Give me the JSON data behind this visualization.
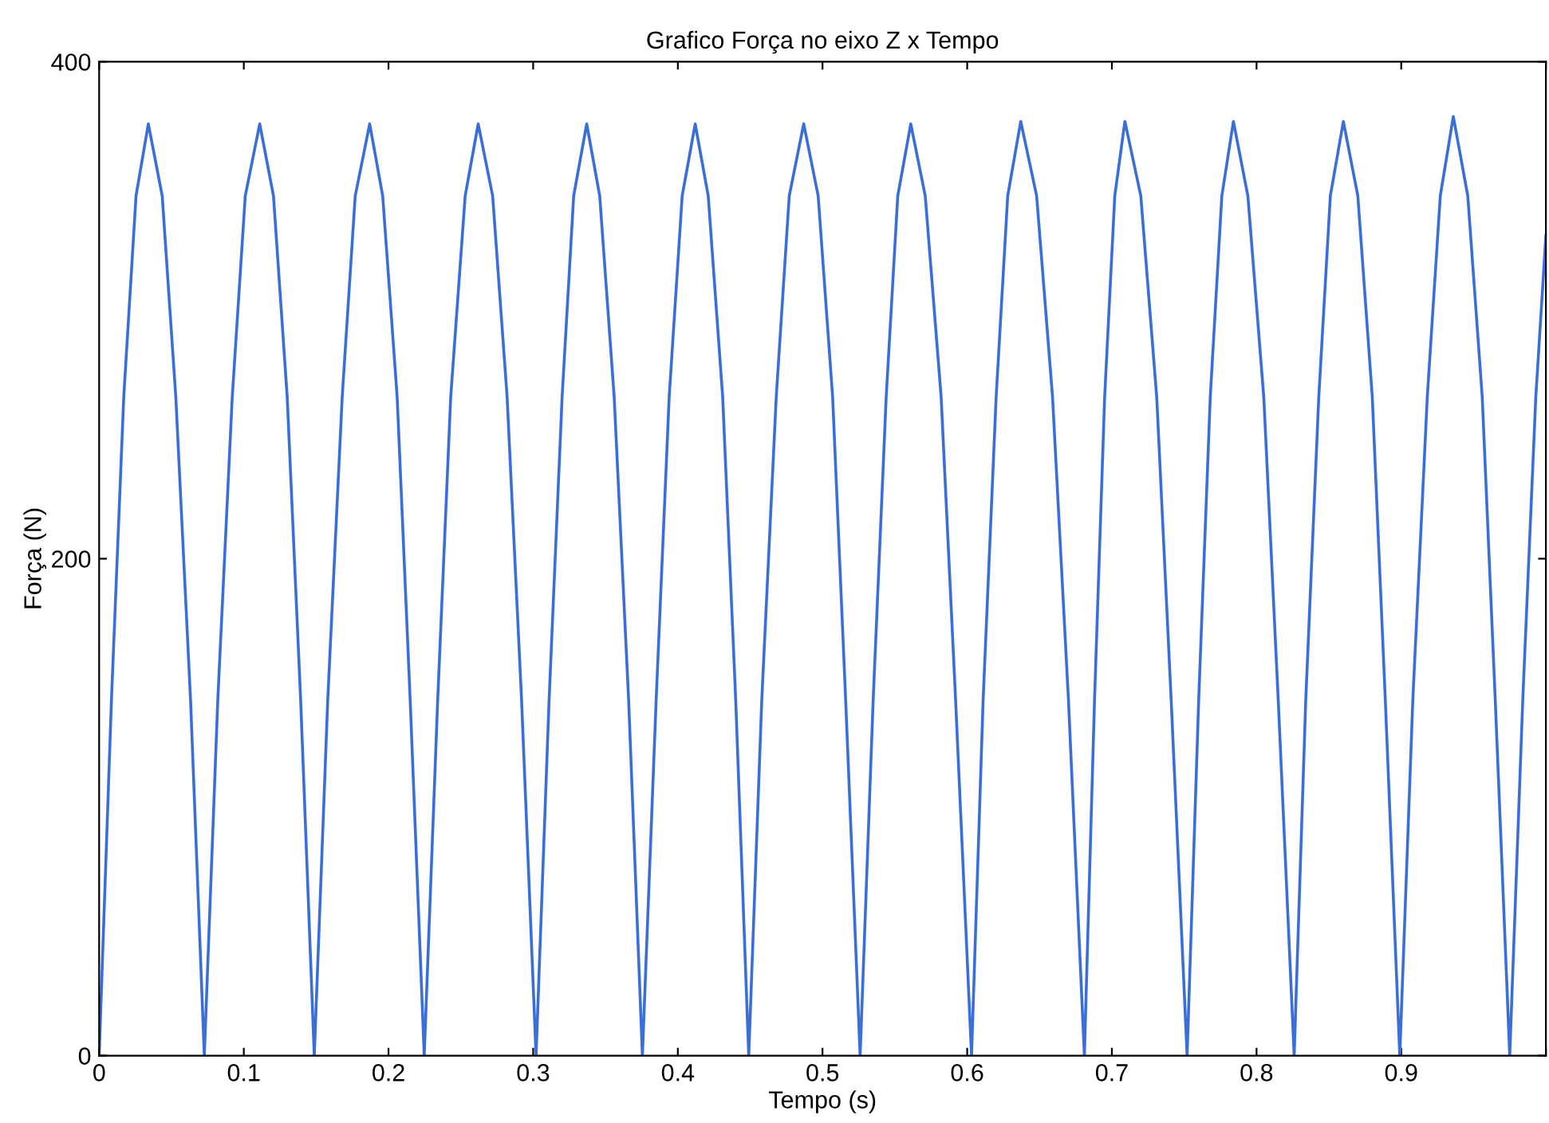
{
  "chart_data": {
    "type": "line",
    "title": "Grafico Força no eixo Z x Tempo",
    "xlabel": "Tempo (s)",
    "ylabel": "Força (N)",
    "x": [
      0,
      0.0085,
      0.017,
      0.0255,
      0.034,
      0.0436,
      0.053,
      0.0632,
      0.0727,
      0.082,
      0.092,
      0.101,
      0.111,
      0.1205,
      0.13,
      0.1393,
      0.1487,
      0.158,
      0.168,
      0.177,
      0.187,
      0.196,
      0.206,
      0.215,
      0.2247,
      0.234,
      0.243,
      0.253,
      0.262,
      0.272,
      0.282,
      0.292,
      0.302,
      0.311,
      0.32,
      0.328,
      0.337,
      0.346,
      0.356,
      0.366,
      0.3755,
      0.385,
      0.394,
      0.403,
      0.412,
      0.421,
      0.431,
      0.44,
      0.449,
      0.458,
      0.468,
      0.477,
      0.487,
      0.497,
      0.507,
      0.516,
      0.526,
      0.535,
      0.544,
      0.552,
      0.561,
      0.571,
      0.582,
      0.592,
      0.603,
      0.611,
      0.62,
      0.628,
      0.637,
      0.648,
      0.659,
      0.67,
      0.681,
      0.688,
      0.695,
      0.702,
      0.709,
      0.72,
      0.731,
      0.741,
      0.752,
      0.76,
      0.768,
      0.776,
      0.784,
      0.794,
      0.805,
      0.815,
      0.826,
      0.834,
      0.843,
      0.851,
      0.86,
      0.87,
      0.88,
      0.889,
      0.899,
      0.908,
      0.918,
      0.927,
      0.936,
      0.946,
      0.956,
      0.965,
      0.975,
      0.984,
      0.993,
      1.0
    ],
    "series": [
      {
        "color": "#3a6fd8",
        "values": [
          0,
          143,
          265,
          346,
          375,
          346,
          265,
          143,
          0,
          143,
          265,
          346,
          375,
          346,
          265,
          143,
          0,
          143,
          265,
          346,
          375,
          346,
          265,
          143,
          0,
          143,
          265,
          346,
          375,
          346,
          265,
          143,
          0,
          143,
          265,
          346,
          375,
          346,
          265,
          143,
          0,
          143,
          265,
          346,
          375,
          346,
          265,
          143,
          0,
          143,
          265,
          346,
          375,
          346,
          265,
          143,
          0,
          143,
          265,
          346,
          375,
          346,
          265,
          143,
          0,
          143,
          265,
          346,
          376,
          346,
          265,
          143,
          0,
          143,
          265,
          346,
          376,
          346,
          265,
          143,
          0,
          143,
          265,
          346,
          376,
          346,
          265,
          143,
          0,
          143,
          265,
          346,
          376,
          346,
          265,
          143,
          0,
          143,
          265,
          346,
          378,
          346,
          265,
          143,
          0,
          143,
          265,
          330
        ]
      }
    ],
    "xlim": [
      0,
      1
    ],
    "ylim": [
      0,
      400
    ],
    "xticks": [
      0,
      0.1,
      0.2,
      0.3,
      0.4,
      0.5,
      0.6,
      0.7,
      0.8,
      0.9,
      {
        "value": 1,
        "label": null
      }
    ],
    "yticks": [
      0,
      200,
      400
    ],
    "grid": false,
    "marker": "none",
    "line_style": "solid"
  }
}
